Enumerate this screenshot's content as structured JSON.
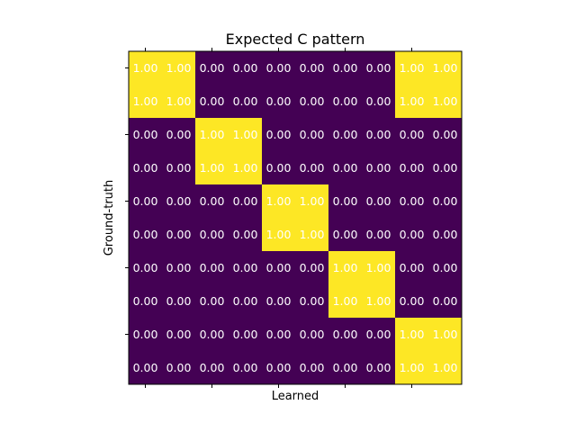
{
  "chart_data": {
    "type": "heatmap",
    "title": "Expected C pattern",
    "xlabel": "Learned",
    "ylabel": "Ground-truth",
    "colormap": "viridis",
    "low_color": "#440154",
    "high_color": "#fde725",
    "value_format": "2 decimals",
    "rows": 10,
    "cols": 10,
    "values": [
      [
        1,
        1,
        0,
        0,
        0,
        0,
        0,
        0,
        1,
        1
      ],
      [
        1,
        1,
        0,
        0,
        0,
        0,
        0,
        0,
        1,
        1
      ],
      [
        0,
        0,
        1,
        1,
        0,
        0,
        0,
        0,
        0,
        0
      ],
      [
        0,
        0,
        1,
        1,
        0,
        0,
        0,
        0,
        0,
        0
      ],
      [
        0,
        0,
        0,
        0,
        1,
        1,
        0,
        0,
        0,
        0
      ],
      [
        0,
        0,
        0,
        0,
        1,
        1,
        0,
        0,
        0,
        0
      ],
      [
        0,
        0,
        0,
        0,
        0,
        0,
        1,
        1,
        0,
        0
      ],
      [
        0,
        0,
        0,
        0,
        0,
        0,
        1,
        1,
        0,
        0
      ],
      [
        0,
        0,
        0,
        0,
        0,
        0,
        0,
        0,
        1,
        1
      ],
      [
        0,
        0,
        0,
        0,
        0,
        0,
        0,
        0,
        1,
        1
      ]
    ],
    "x_ticks_labeled": false,
    "y_ticks_labeled": false
  }
}
